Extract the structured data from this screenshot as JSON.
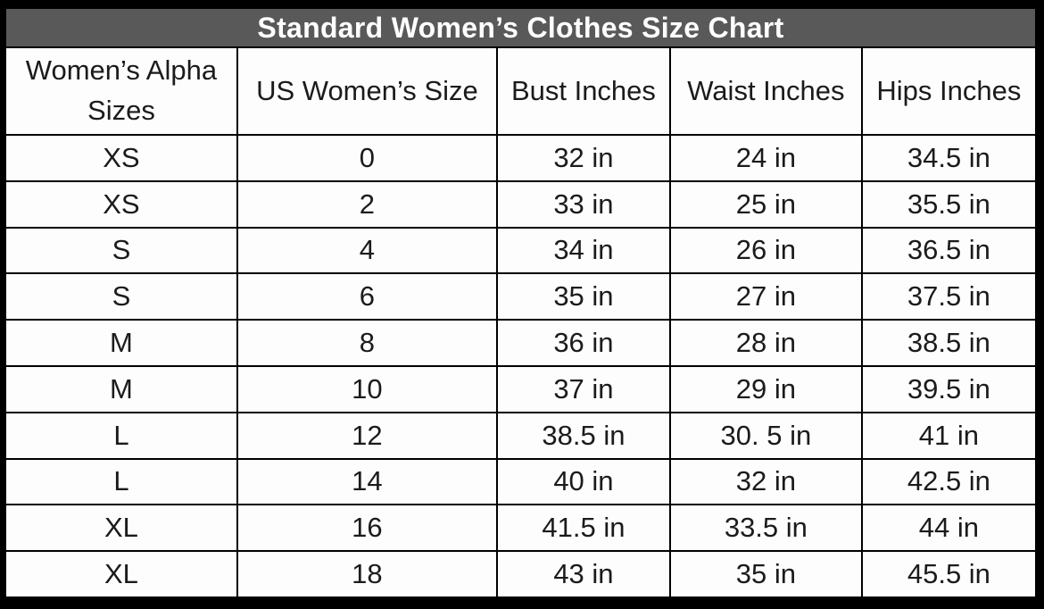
{
  "table": {
    "title": "Standard Women’s Clothes Size Chart",
    "columns": [
      {
        "key": "alpha-size",
        "label": "Women’s Alpha Sizes"
      },
      {
        "key": "us-size",
        "label": "US Women’s Size"
      },
      {
        "key": "bust",
        "label": "Bust Inches"
      },
      {
        "key": "waist",
        "label": "Waist Inches"
      },
      {
        "key": "hips",
        "label": "Hips Inches"
      }
    ],
    "rows": [
      [
        "XS",
        "0",
        "32 in",
        "24 in",
        "34.5 in"
      ],
      [
        "XS",
        "2",
        "33 in",
        "25 in",
        "35.5 in"
      ],
      [
        "S",
        "4",
        "34 in",
        "26 in",
        "36.5 in"
      ],
      [
        "S",
        "6",
        "35 in",
        "27 in",
        "37.5 in"
      ],
      [
        "M",
        "8",
        "36 in",
        "28 in",
        "38.5 in"
      ],
      [
        "M",
        "10",
        "37 in",
        "29 in",
        "39.5 in"
      ],
      [
        "L",
        "12",
        "38.5 in",
        "30. 5 in",
        "41 in"
      ],
      [
        "L",
        "14",
        "40 in",
        "32 in",
        "42.5 in"
      ],
      [
        "XL",
        "16",
        "41.5 in",
        "33.5 in",
        "44 in"
      ],
      [
        "XL",
        "18",
        "43 in",
        "35 in",
        "45.5 in"
      ]
    ]
  },
  "colors": {
    "title_bg": "#595959",
    "title_text": "#ffffff",
    "cell_bg": "#fdfdfd",
    "cell_text": "#1b1b1b",
    "border": "#000000",
    "outer_frame": "#000000"
  },
  "chart_data": {
    "type": "table",
    "title": "Standard Women’s Clothes Size Chart",
    "columns": [
      "Women’s Alpha Sizes",
      "US Women’s Size",
      "Bust Inches",
      "Waist Inches",
      "Hips Inches"
    ],
    "rows": [
      [
        "XS",
        "0",
        "32 in",
        "24 in",
        "34.5 in"
      ],
      [
        "XS",
        "2",
        "33 in",
        "25 in",
        "35.5 in"
      ],
      [
        "S",
        "4",
        "34 in",
        "26 in",
        "36.5 in"
      ],
      [
        "S",
        "6",
        "35 in",
        "27 in",
        "37.5 in"
      ],
      [
        "M",
        "8",
        "36 in",
        "28 in",
        "38.5 in"
      ],
      [
        "M",
        "10",
        "37 in",
        "29 in",
        "39.5 in"
      ],
      [
        "L",
        "12",
        "38.5 in",
        "30. 5 in",
        "41 in"
      ],
      [
        "L",
        "14",
        "40 in",
        "32 in",
        "42.5 in"
      ],
      [
        "XL",
        "16",
        "41.5 in",
        "33.5 in",
        "44 in"
      ],
      [
        "XL",
        "18",
        "43 in",
        "35 in",
        "45.5 in"
      ]
    ]
  }
}
